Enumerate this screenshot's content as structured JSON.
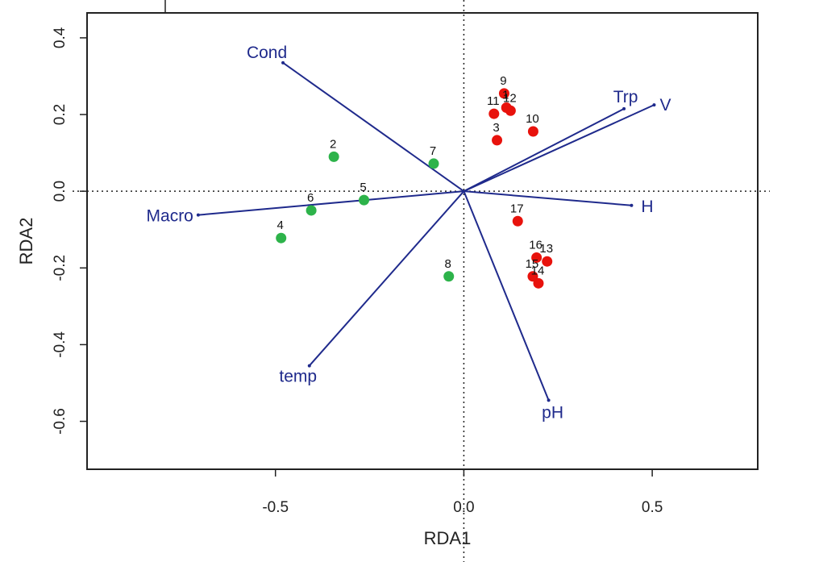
{
  "chart_data": {
    "type": "scatter",
    "title": "",
    "xlabel": "RDA1",
    "ylabel": "RDA2",
    "xlim": [
      -1.0,
      0.78
    ],
    "ylim": [
      -0.725,
      0.465
    ],
    "x_ticks": [
      {
        "value": -0.5,
        "label": "-0.5"
      },
      {
        "value": 0.0,
        "label": "0.0"
      },
      {
        "value": 0.5,
        "label": "0.5"
      }
    ],
    "y_ticks": [
      {
        "value": 0.4,
        "label": "0.4"
      },
      {
        "value": 0.2,
        "label": "0.2"
      },
      {
        "value": 0.0,
        "label": "0.0"
      },
      {
        "value": -0.2,
        "label": "-0.2"
      },
      {
        "value": -0.4,
        "label": "-0.4"
      },
      {
        "value": -0.6,
        "label": "-0.6"
      }
    ],
    "colors": {
      "green": "#2db34a",
      "red": "#e8120c",
      "vector": "#1f2a8c",
      "frame": "#222222"
    },
    "series": [
      {
        "name": "green sites",
        "color_key": "green",
        "points": [
          {
            "label": "2",
            "x": -0.345,
            "y": 0.09
          },
          {
            "label": "7",
            "x": -0.08,
            "y": 0.072
          },
          {
            "label": "5",
            "x": -0.265,
            "y": -0.023
          },
          {
            "label": "6",
            "x": -0.405,
            "y": -0.05
          },
          {
            "label": "4",
            "x": -0.485,
            "y": -0.122
          },
          {
            "label": "8",
            "x": -0.04,
            "y": -0.222
          }
        ]
      },
      {
        "name": "red sites",
        "color_key": "red",
        "points": [
          {
            "label": "9",
            "x": 0.107,
            "y": 0.255
          },
          {
            "label": "1",
            "x": 0.113,
            "y": 0.218
          },
          {
            "label": "11",
            "x": 0.08,
            "y": 0.202
          },
          {
            "label": "12",
            "x": 0.124,
            "y": 0.21
          },
          {
            "label": "10",
            "x": 0.184,
            "y": 0.156
          },
          {
            "label": "3",
            "x": 0.088,
            "y": 0.133
          },
          {
            "label": "17",
            "x": 0.143,
            "y": -0.078
          },
          {
            "label": "16",
            "x": 0.193,
            "y": -0.173
          },
          {
            "label": "13",
            "x": 0.221,
            "y": -0.183
          },
          {
            "label": "15",
            "x": 0.183,
            "y": -0.222
          },
          {
            "label": "14",
            "x": 0.198,
            "y": -0.24
          }
        ]
      }
    ],
    "vectors": [
      {
        "label": "Cond",
        "x": -0.48,
        "y": 0.335
      },
      {
        "label": "Trp",
        "x": 0.425,
        "y": 0.215
      },
      {
        "label": "V",
        "x": 0.505,
        "y": 0.225
      },
      {
        "label": "H",
        "x": 0.445,
        "y": -0.037
      },
      {
        "label": "pH",
        "x": 0.225,
        "y": -0.545
      },
      {
        "label": "temp",
        "x": -0.41,
        "y": -0.455
      },
      {
        "label": "Macro",
        "x": -0.705,
        "y": -0.062
      }
    ],
    "reference_lines": {
      "x": 0,
      "y": 0,
      "style": "dotted"
    },
    "grid": false,
    "legend": "none"
  }
}
